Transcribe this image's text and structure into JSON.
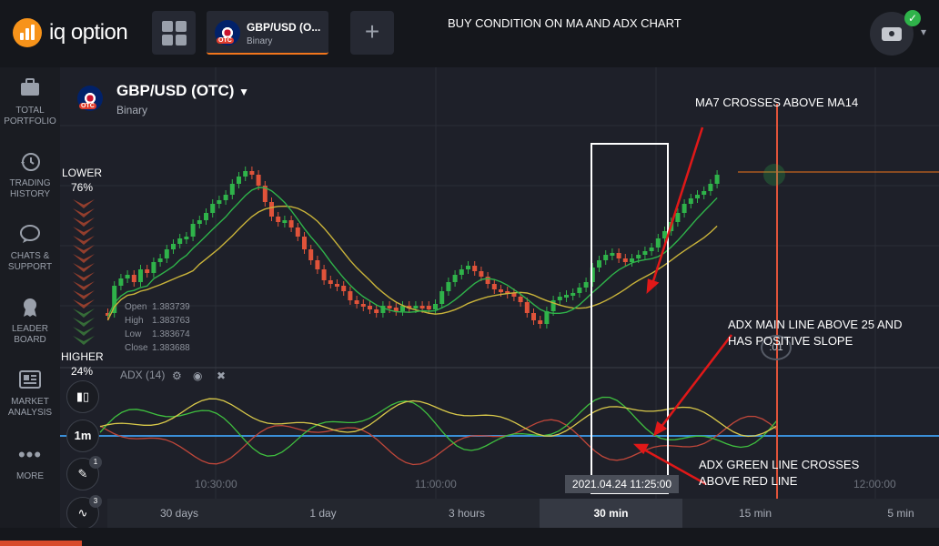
{
  "app": {
    "logo_text": "iq option",
    "tab": {
      "title": "GBP/USD (O...",
      "subtitle": "Binary",
      "badge": "OTC"
    },
    "annotation_title": "BUY CONDITION ON MA AND ADX CHART"
  },
  "sidebar": {
    "items": [
      {
        "label": "TOTAL PORTFOLIO",
        "icon": "briefcase-icon"
      },
      {
        "label": "TRADING HISTORY",
        "icon": "history-icon"
      },
      {
        "label": "CHATS & SUPPORT",
        "icon": "chat-icon"
      },
      {
        "label": "LEADER BOARD",
        "icon": "trophy-icon"
      },
      {
        "label": "MARKET ANALYSIS",
        "icon": "newspaper-icon"
      },
      {
        "label": "MORE",
        "icon": "more-icon"
      }
    ]
  },
  "asset": {
    "title": "GBP/USD (OTC)",
    "subtitle": "Binary",
    "badge": "OTC"
  },
  "sentiment": {
    "lower_label": "LOWER",
    "lower_value": "76%",
    "higher_label": "HIGHER",
    "higher_value": "24%"
  },
  "ohlc": {
    "open_label": "Open",
    "open": "1.383739",
    "high_label": "High",
    "high": "1.383763",
    "low_label": "Low",
    "low": "1.383674",
    "close_label": "Close",
    "close": "1.383688"
  },
  "indicator": {
    "label": "ADX (14)"
  },
  "tools": {
    "timeframe": "1m",
    "draw_badge": "1",
    "indicator_badge": "3"
  },
  "timer": ":01",
  "time_axis": {
    "t1": "10:30:00",
    "t2": "11:00:00",
    "t3": "12:00:00",
    "highlight": "2021.04.24 11:25:00"
  },
  "annotations": {
    "ma_cross": "MA7 CROSSES ABOVE MA14",
    "adx_main_1": "ADX MAIN LINE ABOVE 25 AND",
    "adx_main_2": "HAS POSITIVE SLOPE",
    "adx_green_1": "ADX GREEN LINE CROSSES",
    "adx_green_2": "ABOVE RED LINE"
  },
  "periods": [
    {
      "label": "30 days"
    },
    {
      "label": "1 day"
    },
    {
      "label": "3 hours"
    },
    {
      "label": "30 min",
      "active": true
    },
    {
      "label": "15 min"
    },
    {
      "label": "5 min"
    }
  ],
  "colors": {
    "accent": "#f2761c",
    "up": "#2fb34a",
    "down": "#e0533a",
    "ma7": "#2fb34a",
    "ma14": "#c9b33a",
    "adx_main": "#d9c94a",
    "di_plus": "#3fbf3f",
    "di_minus": "#c0473a",
    "level": "#3a8fd8"
  },
  "chart_data": {
    "type": "line",
    "candle_close_pixels_note": "",
    "series": [
      {
        "name": "",
        "values": []
      }
    ]
  }
}
